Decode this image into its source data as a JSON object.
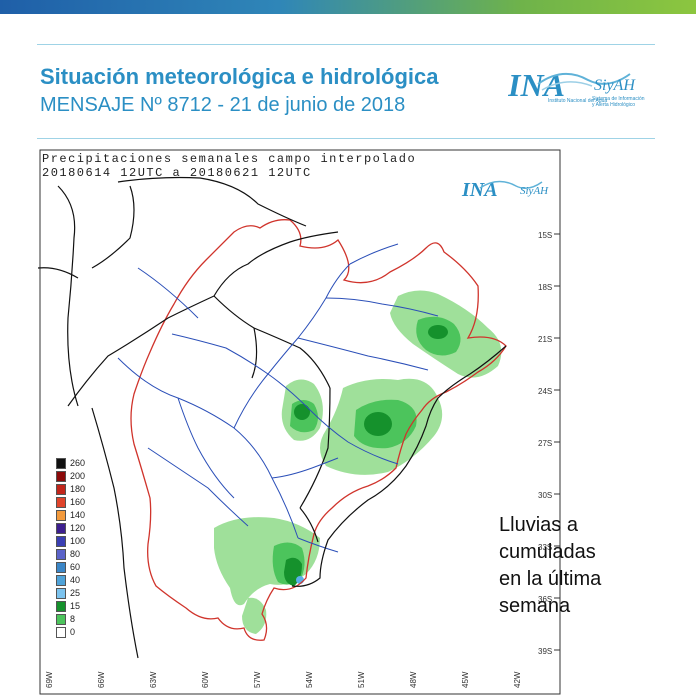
{
  "header": {
    "title": "Situación meteorológica e hidrológica",
    "subtitle": "MENSAJE Nº 8712 - 21 de junio de 2018"
  },
  "logo": {
    "name": "INA",
    "sub": "SiyAH",
    "tagline_1": "Instituto Nacional del Agua",
    "tagline_2": "Sistema de Información",
    "tagline_3": "y Alerta Hidrológico"
  },
  "map": {
    "header_line_1": "Precipitaciones semanales campo interpolado",
    "header_line_2": "20180614 12UTC a 20180621 12UTC",
    "lat_labels": [
      "15S",
      "18S",
      "21S",
      "24S",
      "27S",
      "30S",
      "33S",
      "36S",
      "39S"
    ],
    "lon_labels": [
      "69W",
      "66W",
      "63W",
      "60W",
      "57W",
      "54W",
      "51W",
      "48W",
      "45W",
      "42W"
    ],
    "colors": {
      "border": "#d0342c",
      "rivers": "#2b4fb8",
      "political": "#111111",
      "rain_light": "#9fe09a",
      "rain_mid": "#4cc45c",
      "rain_dark": "#15912c",
      "rain_blue": "#5ab0e8"
    }
  },
  "legend": {
    "items": [
      {
        "label": "260",
        "color": "#111111"
      },
      {
        "label": "200",
        "color": "#8b0a0a"
      },
      {
        "label": "180",
        "color": "#c2261b"
      },
      {
        "label": "160",
        "color": "#e0442b"
      },
      {
        "label": "140",
        "color": "#f39a3c"
      },
      {
        "label": "120",
        "color": "#3d1f8f"
      },
      {
        "label": "100",
        "color": "#3a3fb3"
      },
      {
        "label": "80",
        "color": "#5b63c9"
      },
      {
        "label": "60",
        "color": "#3b86c7"
      },
      {
        "label": "40",
        "color": "#4fa3d9"
      },
      {
        "label": "25",
        "color": "#7cc3ee"
      },
      {
        "label": "15",
        "color": "#15912c"
      },
      {
        "label": "8",
        "color": "#4cc45c"
      },
      {
        "label": "0",
        "color": "#ffffff"
      }
    ]
  },
  "caption": {
    "line_1": "Lluvias a",
    "line_2": "cumuladas",
    "line_3": "en la última",
    "line_4": "semana"
  }
}
